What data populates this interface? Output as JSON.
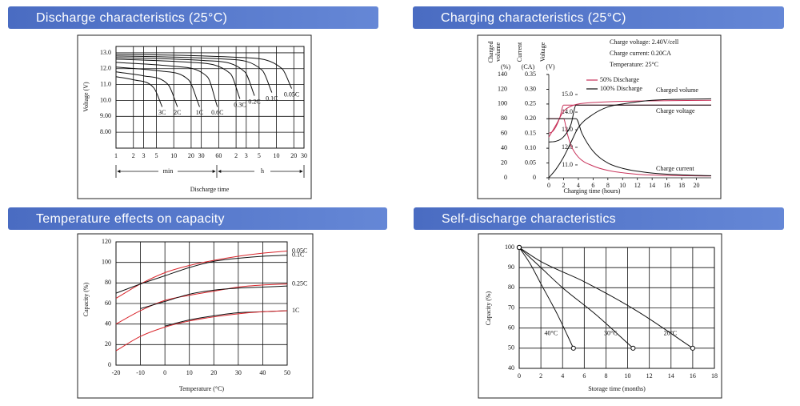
{
  "chart_data": [
    {
      "type": "line",
      "title": "Discharge characteristics (25°C)",
      "xlabel": "Discharge time",
      "ylabel": "Voltage (V)",
      "x_units": [
        "min",
        "h"
      ],
      "xlog": true,
      "xlim": [
        1,
        1800
      ],
      "xticks": [
        1,
        2,
        3,
        5,
        10,
        20,
        30,
        60,
        {
          "value": 120,
          "label": "2"
        },
        {
          "value": 180,
          "label": "3"
        },
        {
          "value": 300,
          "label": "5"
        },
        {
          "value": 600,
          "label": "10"
        },
        {
          "value": 1200,
          "label": "20"
        },
        {
          "value": 1800,
          "label": "30"
        }
      ],
      "ylim": [
        7,
        13.4
      ],
      "yticks": [
        {
          "value": 13,
          "label": "13.0"
        },
        {
          "value": 12,
          "label": "12.0"
        },
        {
          "value": 11,
          "label": "11.0"
        },
        {
          "value": 10,
          "label": "10.0"
        },
        {
          "value": 9,
          "label": "9.00"
        },
        {
          "value": 8,
          "label": "8.00"
        }
      ],
      "grid": true,
      "series": [
        {
          "name": "3C",
          "color": "#111111",
          "x": [
            1,
            2,
            4.5,
            6.3
          ],
          "values": [
            11.5,
            11.3,
            10.8,
            9.6
          ]
        },
        {
          "name": "2C",
          "color": "#111111",
          "x": [
            1,
            3,
            8,
            11.6
          ],
          "values": [
            11.8,
            11.55,
            11.0,
            9.6
          ]
        },
        {
          "name": "1C",
          "color": "#111111",
          "x": [
            1,
            6,
            18,
            28
          ],
          "values": [
            12.1,
            11.85,
            11.3,
            9.6
          ]
        },
        {
          "name": "0.6C",
          "color": "#111111",
          "x": [
            1,
            10,
            38,
            57
          ],
          "values": [
            12.4,
            12.15,
            11.5,
            9.6
          ]
        },
        {
          "name": "0.3C",
          "color": "#111111",
          "x": [
            1,
            20,
            95,
            140
          ],
          "values": [
            12.6,
            12.4,
            11.7,
            10.1
          ]
        },
        {
          "name": "0.2C",
          "color": "#111111",
          "x": [
            1,
            40,
            170,
            250
          ],
          "values": [
            12.7,
            12.5,
            11.8,
            10.3
          ]
        },
        {
          "name": "0.1C",
          "color": "#111111",
          "x": [
            1,
            80,
            340,
            500
          ],
          "values": [
            12.8,
            12.6,
            11.9,
            10.5
          ]
        },
        {
          "name": "0.05C",
          "color": "#111111",
          "x": [
            1,
            160,
            750,
            1100
          ],
          "values": [
            12.9,
            12.7,
            12.0,
            10.75
          ]
        }
      ]
    },
    {
      "type": "line",
      "title": "Charging characteristics (25°C)",
      "xlabel": "Charging time (hours)",
      "ylabel": [
        "Charged",
        "volume"
      ],
      "ylabel_unit": "(%)",
      "y2label": "Current",
      "y2label_unit": "(CA)",
      "y3label": "Voltage",
      "y3label_unit": "(V)",
      "notes": [
        "Charge voltage: 2.40V/cell",
        "Charge current: 0.20CA",
        "Temperature: 25°C"
      ],
      "annotations": [
        "Charged volume",
        "Charge voltage",
        "Charge current"
      ],
      "legend": "top",
      "xlim": [
        0,
        22
      ],
      "xticks": [
        0,
        2,
        4,
        6,
        8,
        10,
        12,
        14,
        16,
        18,
        20
      ],
      "ylim": [
        0,
        140
      ],
      "yticks": [
        0,
        20,
        40,
        60,
        80,
        100,
        120,
        140
      ],
      "y2lim": [
        0,
        0.35
      ],
      "y2ticks": [
        0,
        0.05,
        {
          "value": 0.1,
          "label": "0.10"
        },
        0.15,
        {
          "value": 0.2,
          "label": "0.20"
        },
        0.25,
        {
          "value": 0.3,
          "label": "0.30"
        },
        0.35
      ],
      "y3lim": [
        10.27,
        16.14
      ],
      "y3ticks": [
        {
          "value": 11,
          "label": "11.0"
        },
        {
          "value": 12,
          "label": "12.0"
        },
        {
          "value": 13,
          "label": "13.0"
        },
        {
          "value": 14,
          "label": "14.0"
        },
        {
          "value": 15,
          "label": "15.0"
        }
      ],
      "grid": false,
      "series": [
        {
          "name": "50% Discharge",
          "color": "#c8325a",
          "curves": [
            {
              "axis": "y",
              "x": [
                0,
                1,
                2,
                3,
                4,
                6,
                8,
                12,
                22
              ],
              "values": [
                55,
                72,
                90,
                97,
                100,
                102,
                103,
                104,
                105
              ]
            },
            {
              "axis": "y3",
              "x": [
                0,
                0.5,
                1,
                1.5,
                2,
                22
              ],
              "values": [
                12.8,
                12.9,
                13.2,
                13.7,
                14.4,
                14.4
              ]
            },
            {
              "axis": "y2",
              "x": [
                0,
                2,
                2.5,
                3,
                4,
                6,
                8,
                12,
                16,
                22
              ],
              "values": [
                0.2,
                0.2,
                0.15,
                0.11,
                0.07,
                0.04,
                0.025,
                0.012,
                0.008,
                0.006
              ]
            }
          ]
        },
        {
          "name": "100% Discharge",
          "color": "#111111",
          "curves": [
            {
              "axis": "y",
              "x": [
                0,
                1,
                2,
                3,
                4,
                6,
                8,
                10,
                14,
                22
              ],
              "values": [
                0,
                12,
                28,
                48,
                68,
                86,
                96,
                100,
                105,
                107
              ]
            },
            {
              "axis": "y3",
              "x": [
                0,
                1,
                2,
                3,
                3.7,
                22
              ],
              "values": [
                12.3,
                12.35,
                12.6,
                13.3,
                14.4,
                14.4
              ]
            },
            {
              "axis": "y2",
              "x": [
                0,
                3.7,
                4.5,
                6,
                8,
                10,
                14,
                18,
                22
              ],
              "values": [
                0.2,
                0.2,
                0.15,
                0.09,
                0.05,
                0.032,
                0.016,
                0.01,
                0.007
              ]
            }
          ]
        }
      ]
    },
    {
      "type": "line",
      "title": "Temperature effects on capacity",
      "xlabel": "Temperature (°C)",
      "ylabel": "Capacity (%)",
      "x": [
        -20,
        -10,
        0,
        10,
        20,
        30,
        40,
        50
      ],
      "xlim": [
        -20,
        50
      ],
      "xticks": [
        -20,
        -10,
        0,
        10,
        20,
        30,
        40,
        50
      ],
      "ylim": [
        0,
        120
      ],
      "yticks": [
        0,
        20,
        40,
        60,
        80,
        100,
        120
      ],
      "grid": true,
      "series": [
        {
          "name": "0.05C",
          "color": "#d9262c",
          "values": [
            65,
            79,
            90,
            97,
            102,
            106,
            109,
            111
          ]
        },
        {
          "name": "0.1C",
          "color": "#111111",
          "values": [
            70,
            79,
            87,
            95,
            101,
            104,
            106,
            107
          ]
        },
        {
          "name": "0.25C",
          "color": "#d9262c",
          "values": [
            40,
            53,
            63,
            68,
            72,
            76,
            78,
            79
          ]
        },
        {
          "color": "#111111",
          "values": [
            null,
            55,
            62,
            69,
            73,
            75,
            76,
            77
          ]
        },
        {
          "name": "1C",
          "color": "#111111",
          "values": [
            null,
            null,
            38,
            44,
            48,
            51,
            52,
            53
          ]
        },
        {
          "color": "#d9262c",
          "values": [
            14,
            28,
            37,
            43,
            47,
            50,
            52,
            53
          ]
        }
      ]
    },
    {
      "type": "line",
      "title": "Self-discharge characteristics",
      "xlabel": "Storage time (months)",
      "ylabel": "Capacity (%)",
      "xlim": [
        0,
        18
      ],
      "xticks": [
        0,
        2,
        4,
        6,
        8,
        10,
        12,
        14,
        16,
        18
      ],
      "ylim": [
        40,
        100
      ],
      "yticks": [
        40,
        50,
        60,
        70,
        80,
        90,
        100
      ],
      "grid": true,
      "markers": true,
      "series": [
        {
          "name": "40°C",
          "color": "#111111",
          "x": [
            0,
            1,
            2,
            3.5,
            5
          ],
          "values": [
            100,
            92,
            82,
            67,
            50
          ]
        },
        {
          "name": "30°C",
          "color": "#111111",
          "x": [
            0,
            2,
            4,
            7,
            10.5
          ],
          "values": [
            100,
            90,
            80,
            67,
            50
          ]
        },
        {
          "name": "20°C",
          "color": "#111111",
          "x": [
            0,
            2,
            6,
            11,
            16
          ],
          "values": [
            100,
            93,
            83,
            68,
            50
          ]
        }
      ]
    }
  ]
}
